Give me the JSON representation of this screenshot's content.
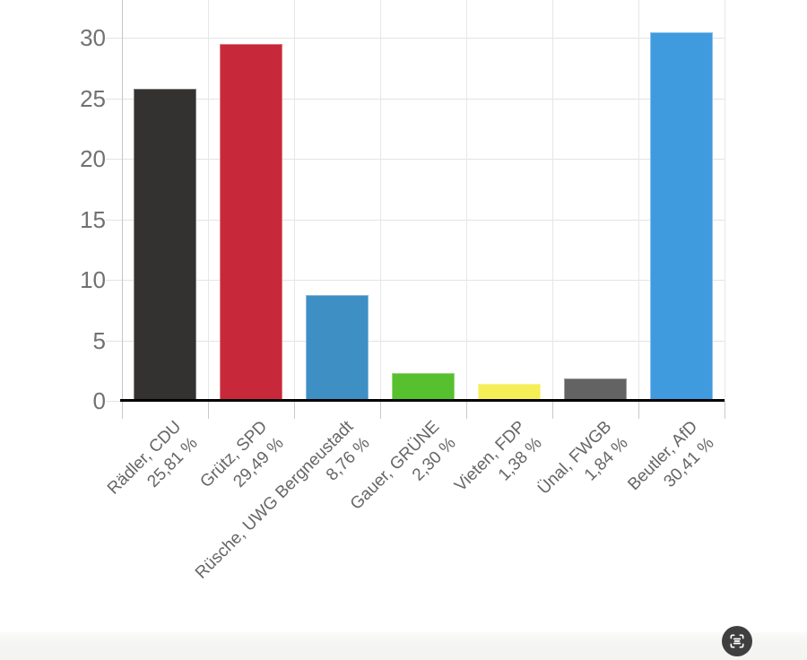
{
  "chart_data": {
    "type": "bar",
    "categories": [
      "Rädler, CDU",
      "Grütz, SPD",
      "Rüsche, UWG Bergneustadt",
      "Gauer, GRÜNE",
      "Vieten, FDP",
      "Ünal, FWGB",
      "Beutler, AfD"
    ],
    "value_labels": [
      "25,81 %",
      "29,49 %",
      "8,76 %",
      "2,30 %",
      "1,38 %",
      "1,84 %",
      "30,41 %"
    ],
    "values": [
      25.81,
      29.49,
      8.76,
      2.3,
      1.38,
      1.84,
      30.41
    ],
    "bar_colors": [
      "#333231",
      "#c8293a",
      "#3e8fc4",
      "#56c02f",
      "#f6ee57",
      "#636363",
      "#3f9ade"
    ],
    "yticks": [
      0,
      5,
      10,
      15,
      20,
      25,
      30
    ],
    "ylim": [
      0,
      33.1
    ],
    "xlabel": "",
    "ylabel": "",
    "grid": true,
    "legend": false
  },
  "icons": {
    "bottom_right_button": "scan-lines-icon"
  }
}
